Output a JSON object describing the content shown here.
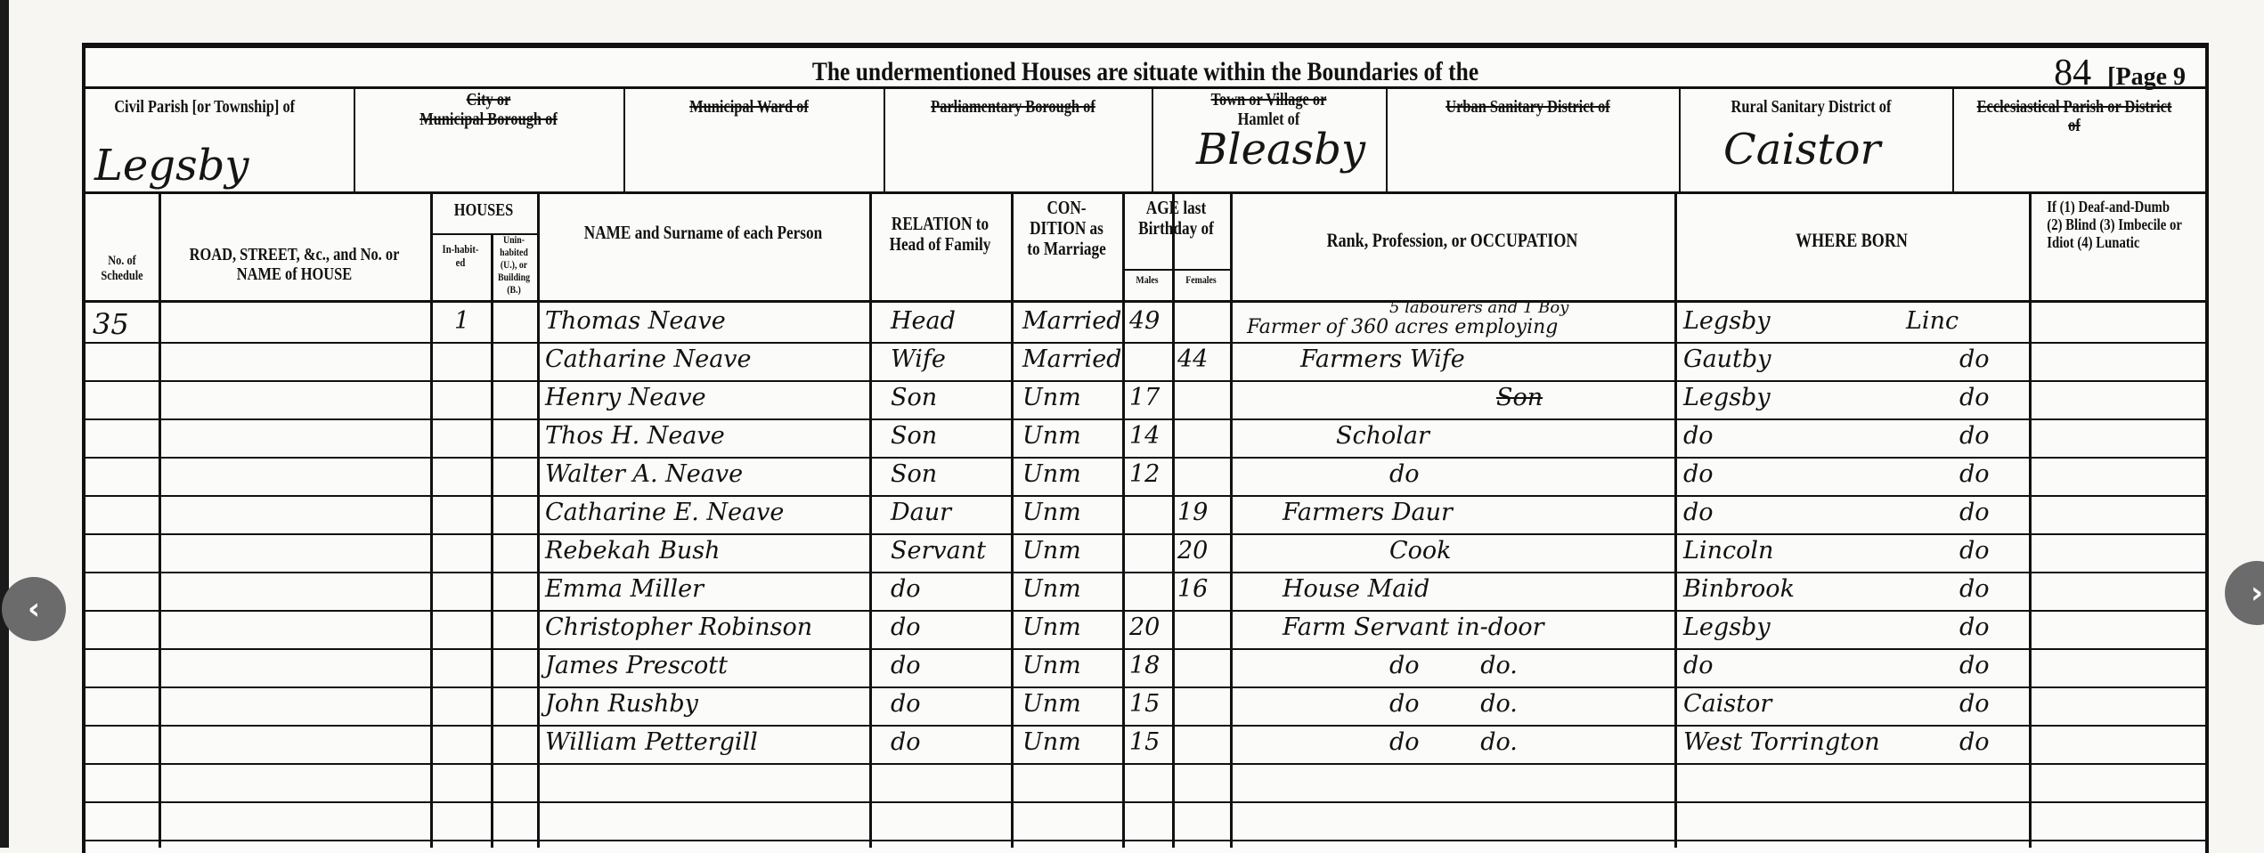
{
  "page": {
    "folio": "84",
    "page_label": "[Page 9"
  },
  "title": "The undermentioned Houses are situate within the Boundaries of the",
  "boundaries": [
    {
      "label": "Civil Parish [or Township] of",
      "struck": false,
      "value": "Legsby"
    },
    {
      "label_struck": "City or",
      "label": "Municipal Borough of",
      "struck": true,
      "value": ""
    },
    {
      "label": "Municipal Ward of",
      "struck": true,
      "value": ""
    },
    {
      "label": "Parliamentary Borough of",
      "struck": true,
      "value": ""
    },
    {
      "label_struck": "Town or Village or",
      "label": "Hamlet of",
      "struck": false,
      "value": "Bleasby"
    },
    {
      "label": "Urban Sanitary District of",
      "struck": true,
      "value": ""
    },
    {
      "label": "Rural Sanitary District of",
      "struck": false,
      "value": "Caistor"
    },
    {
      "label": "Ecclesiastical Parish or District of",
      "struck": true,
      "value": ""
    }
  ],
  "columns": {
    "schedule": "No. of Schedule",
    "road": "ROAD, STREET, &c., and No. or NAME of HOUSE",
    "houses": "HOUSES",
    "inhabited": "In-habit-ed",
    "uninhabited": "Unin-habited (U.), or Building (B.)",
    "name": "NAME and Surname of each Person",
    "relation": "RELATION to Head of Family",
    "condition": "CON-DITION as to Marriage",
    "age": "AGE last Birthday of",
    "males": "Males",
    "females": "Females",
    "occupation": "Rank, Profession, or OCCUPATION",
    "where_born": "WHERE BORN",
    "infirmity": "If (1) Deaf-and-Dumb (2) Blind (3) Imbecile or Idiot (4) Lunatic"
  },
  "rows": [
    {
      "schedule": "35",
      "inhabited": "1",
      "name": "Thomas Neave",
      "relation": "Head",
      "condition": "Married",
      "male": "49",
      "female": "",
      "occupation": "Farmer of 360 acres employing",
      "occupation_note": "5 labourers and 1 Boy",
      "born_place": "Legsby",
      "born_county": "Linc"
    },
    {
      "name": "Catharine Neave",
      "relation": "Wife",
      "condition": "Married",
      "male": "",
      "female": "44",
      "occupation": "Farmers Wife",
      "born_place": "Gautby",
      "born_county": "do"
    },
    {
      "name": "Henry Neave",
      "relation": "Son",
      "condition": "Unm",
      "male": "17",
      "female": "",
      "occupation": "Son",
      "born_place": "Legsby",
      "born_county": "do"
    },
    {
      "name": "Thos H. Neave",
      "relation": "Son",
      "condition": "Unm",
      "male": "14",
      "female": "",
      "occupation": "Scholar",
      "born_place": "do",
      "born_county": "do"
    },
    {
      "name": "Walter A. Neave",
      "relation": "Son",
      "condition": "Unm",
      "male": "12",
      "female": "",
      "occupation": "do",
      "born_place": "do",
      "born_county": "do"
    },
    {
      "name": "Catharine E. Neave",
      "relation": "Daur",
      "condition": "Unm",
      "male": "",
      "female": "19",
      "occupation": "Farmers Daur",
      "born_place": "do",
      "born_county": "do"
    },
    {
      "name": "Rebekah Bush",
      "relation": "Servant",
      "condition": "Unm",
      "male": "",
      "female": "20",
      "occupation": "Cook",
      "born_place": "Lincoln",
      "born_county": "do"
    },
    {
      "name": "Emma Miller",
      "relation": "do",
      "condition": "Unm",
      "male": "",
      "female": "16",
      "occupation": "House Maid",
      "born_place": "Binbrook",
      "born_county": "do"
    },
    {
      "name": "Christopher Robinson",
      "relation": "do",
      "condition": "Unm",
      "male": "20",
      "female": "",
      "occupation": "Farm Servant in-door",
      "born_place": "Legsby",
      "born_county": "do"
    },
    {
      "name": "James Prescott",
      "relation": "do",
      "condition": "Unm",
      "male": "18",
      "female": "",
      "occupation": "do        do.",
      "born_place": "do",
      "born_county": "do"
    },
    {
      "name": "John Rushby",
      "relation": "do",
      "condition": "Unm",
      "male": "15",
      "female": "",
      "occupation": "do        do.",
      "born_place": "Caistor",
      "born_county": "do"
    },
    {
      "name": "William Pettergill",
      "relation": "do",
      "condition": "Unm",
      "male": "15",
      "female": "",
      "occupation": "do        do.",
      "born_place": "West Torrington",
      "born_county": "do"
    }
  ],
  "nav": {
    "prev_icon": "chevron-left-icon",
    "next_icon": "chevron-right-icon",
    "prev": "‹",
    "next": "›"
  }
}
